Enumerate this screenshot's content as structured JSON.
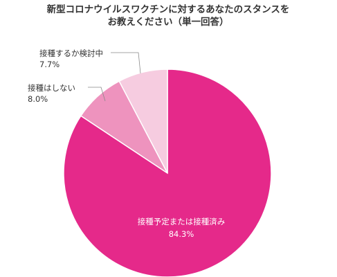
{
  "chart_data": {
    "type": "pie",
    "title": "新型コロナウイルスワクチンに対するあなたのスタンスを",
    "subtitle": "お教えください（単一回答）",
    "slices": [
      {
        "label": "接種予定または接種済み",
        "value": 84.3,
        "value_label": "84.3%",
        "color": "#e5298a"
      },
      {
        "label": "接種はしない",
        "value": 8.0,
        "value_label": "8.0%",
        "color": "#ee93be"
      },
      {
        "label": "接種するか検討中",
        "value": 7.7,
        "value_label": "7.7%",
        "color": "#f6cce0"
      }
    ]
  }
}
